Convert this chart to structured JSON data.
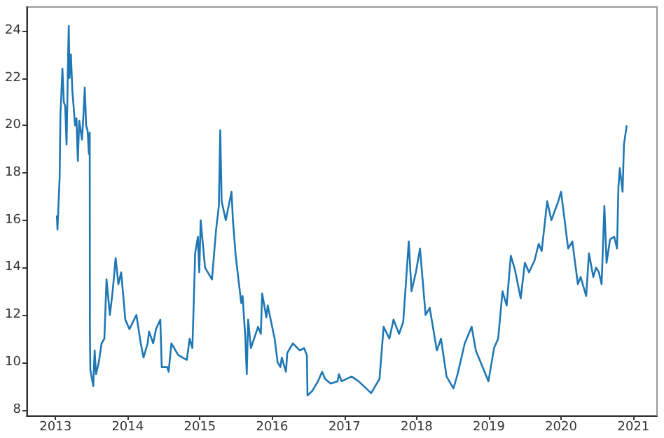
{
  "chart_data": {
    "type": "line",
    "color": "#1f77b4",
    "grid": false,
    "marker": "none",
    "line_style": "solid",
    "x": [
      "2013-01-08",
      "2013-01-11",
      "2013-01-22",
      "2013-01-26",
      "2013-01-29",
      "2013-02-05",
      "2013-02-12",
      "2013-02-19",
      "2013-02-26",
      "2013-03-06",
      "2013-03-09",
      "2013-03-13",
      "2013-03-20",
      "2013-03-27",
      "2013-04-10",
      "2013-04-17",
      "2013-04-24",
      "2013-05-01",
      "2013-05-15",
      "2013-05-22",
      "2013-05-29",
      "2013-06-05",
      "2013-06-12",
      "2013-06-19",
      "2013-06-23",
      "2013-06-24",
      "2013-06-26",
      "2013-07-11",
      "2013-07-18",
      "2013-07-25",
      "2013-08-08",
      "2013-08-22",
      "2013-09-05",
      "2013-09-16",
      "2013-10-03",
      "2013-10-17",
      "2013-11-01",
      "2013-11-15",
      "2013-11-29",
      "2013-12-13",
      "2013-12-20",
      "2014-01-10",
      "2014-02-14",
      "2014-03-08",
      "2014-03-22",
      "2014-04-12",
      "2014-04-19",
      "2014-05-10",
      "2014-05-24",
      "2014-06-15",
      "2014-06-22",
      "2014-07-20",
      "2014-07-27",
      "2014-08-10",
      "2014-09-14",
      "2014-10-27",
      "2014-11-10",
      "2014-11-24",
      "2014-12-01",
      "2014-12-08",
      "2014-12-22",
      "2014-12-29",
      "2015-01-05",
      "2015-01-27",
      "2015-03-03",
      "2015-03-10",
      "2015-03-24",
      "2015-04-07",
      "2015-04-14",
      "2015-04-21",
      "2015-05-12",
      "2015-06-10",
      "2015-06-17",
      "2015-07-01",
      "2015-07-15",
      "2015-07-29",
      "2015-08-05",
      "2015-08-19",
      "2015-08-26",
      "2015-09-02",
      "2015-09-16",
      "2015-10-22",
      "2015-11-05",
      "2015-11-12",
      "2015-12-03",
      "2015-12-10",
      "2016-01-14",
      "2016-01-29",
      "2016-02-12",
      "2016-02-19",
      "2016-03-11",
      "2016-03-18",
      "2016-04-15",
      "2016-05-20",
      "2016-06-11",
      "2016-06-25",
      "2016-06-28",
      "2016-07-23",
      "2016-08-20",
      "2016-09-10",
      "2016-09-25",
      "2016-10-23",
      "2016-11-27",
      "2016-12-04",
      "2016-12-18",
      "2017-02-06",
      "2017-03-13",
      "2017-05-16",
      "2017-06-06",
      "2017-06-27",
      "2017-07-18",
      "2017-08-16",
      "2017-09-06",
      "2017-10-04",
      "2017-10-25",
      "2017-11-22",
      "2017-12-06",
      "2017-12-28",
      "2018-01-18",
      "2018-02-15",
      "2018-03-08",
      "2018-04-13",
      "2018-05-04",
      "2018-06-01",
      "2018-07-06",
      "2018-07-27",
      "2018-09-01",
      "2018-10-06",
      "2018-10-27",
      "2018-12-30",
      "2019-01-27",
      "2019-02-17",
      "2019-03-11",
      "2019-04-01",
      "2019-04-22",
      "2019-05-13",
      "2019-06-11",
      "2019-07-02",
      "2019-07-23",
      "2019-08-20",
      "2019-09-10",
      "2019-09-25",
      "2019-10-23",
      "2019-11-13",
      "2019-12-18",
      "2020-01-01",
      "2020-02-06",
      "2020-02-27",
      "2020-03-26",
      "2020-04-09",
      "2020-05-07",
      "2020-05-21",
      "2020-06-12",
      "2020-06-26",
      "2020-07-10",
      "2020-07-24",
      "2020-08-07",
      "2020-08-18",
      "2020-09-05",
      "2020-09-26",
      "2020-10-10",
      "2020-10-17",
      "2020-10-24",
      "2020-11-07",
      "2020-11-14",
      "2020-11-28"
    ],
    "values": [
      16.2,
      15.6,
      17.8,
      20.5,
      21,
      22.4,
      21,
      20.8,
      19.2,
      23,
      24.2,
      22,
      23,
      21.5,
      20,
      20.3,
      18.5,
      20.2,
      19.4,
      20.4,
      21.6,
      20,
      19.8,
      18.8,
      19.7,
      11.3,
      9.7,
      9.0,
      10.5,
      9.5,
      10,
      10.8,
      11,
      13.5,
      12,
      13,
      14.4,
      13.3,
      13.8,
      12.5,
      11.8,
      11.4,
      12,
      10.8,
      10.2,
      10.8,
      11.3,
      10.8,
      11.4,
      11.8,
      9.8,
      9.8,
      9.6,
      10.8,
      10.3,
      10.1,
      11,
      10.6,
      12.5,
      14.6,
      15.3,
      13.8,
      16,
      14,
      13.5,
      14.2,
      15.6,
      16.6,
      19.8,
      16.8,
      16,
      17.2,
      16,
      14.5,
      13.5,
      12.5,
      12.8,
      11,
      9.5,
      11.8,
      10.6,
      11.5,
      11.2,
      12.9,
      11.9,
      12.4,
      11,
      10,
      9.8,
      10.2,
      9.6,
      10.4,
      10.8,
      10.5,
      10.6,
      10.3,
      8.6,
      8.8,
      9.2,
      9.6,
      9.3,
      9.1,
      9.2,
      9.5,
      9.2,
      9.4,
      9.2,
      8.7,
      9.0,
      9.3,
      11.5,
      11,
      11.8,
      11.2,
      11.7,
      15.1,
      13,
      13.8,
      14.8,
      12,
      12.3,
      10.5,
      11,
      9.4,
      8.9,
      9.5,
      10.8,
      11.5,
      10.5,
      9.2,
      10.6,
      11,
      13,
      12.4,
      14.5,
      13.9,
      12.7,
      14.2,
      13.8,
      14.3,
      15,
      14.7,
      16.8,
      16,
      16.8,
      17.2,
      14.8,
      15.1,
      13.3,
      13.6,
      12.8,
      14.6,
      13.6,
      14,
      13.8,
      13.3,
      16.6,
      14.2,
      15.2,
      15.3,
      14.8,
      17.4,
      18.2,
      17.2,
      19.2,
      20
    ],
    "xlim": [
      "2012-08-08",
      "2021-04-30"
    ],
    "xticks": [
      {
        "value": "2013",
        "label": "2013"
      },
      {
        "value": "2014",
        "label": "2014"
      },
      {
        "value": "2015",
        "label": "2015"
      },
      {
        "value": "2016",
        "label": "2016"
      },
      {
        "value": "2017",
        "label": "2017"
      },
      {
        "value": "2018",
        "label": "2018"
      },
      {
        "value": "2019",
        "label": "2019"
      },
      {
        "value": "2020",
        "label": "2020"
      },
      {
        "value": "2021",
        "label": "2021"
      }
    ],
    "ylim": [
      7.75,
      25
    ],
    "yticks": [
      8,
      10,
      12,
      14,
      16,
      18,
      20,
      22,
      24
    ]
  }
}
